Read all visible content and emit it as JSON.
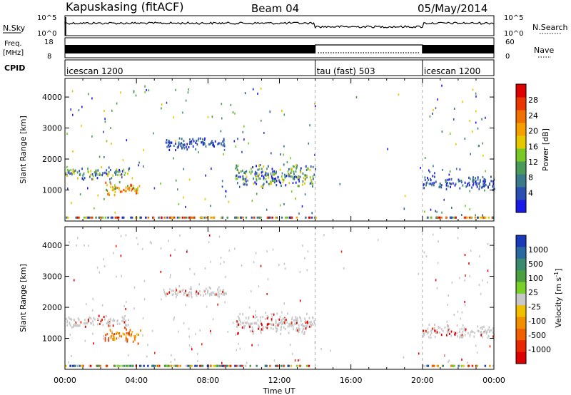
{
  "header": {
    "station": "Kapuskasing (fitACF)",
    "beam": "Beam 04",
    "date": "05/May/2014"
  },
  "strip_labels": {
    "nsky": "N.Sky",
    "nsky_top": "10^5",
    "nsky_bottom": "10^0",
    "freq_line1": "Freq.",
    "freq_line2": "[MHz]",
    "freq_top": "18",
    "freq_bottom": "8",
    "cpid": "CPID",
    "nsearch": "N.Search",
    "nsearch_top": "10^5",
    "nsearch_bottom": "10^0",
    "nave": "Nave",
    "nave_top": "60",
    "nave_bottom": "0"
  },
  "cpid_segments": [
    {
      "label": "icescan 1200",
      "start": 0,
      "end": 14
    },
    {
      "label": "tau (fast) 503",
      "start": 14,
      "end": 20
    },
    {
      "label": "icescan 1200",
      "start": 20,
      "end": 24
    }
  ],
  "chart_data": [
    {
      "type": "heatmap",
      "panel": "power",
      "xlabel": "",
      "ylabel": "Slant Range [km]",
      "x_range_hours": [
        0,
        24
      ],
      "ylim": [
        0,
        4600
      ],
      "y_ticks": [
        1000,
        2000,
        3000,
        4000
      ],
      "colorbar": {
        "label": "Power [dB]",
        "ticks": [
          "4",
          "8",
          "12",
          "16",
          "20",
          "24",
          "28"
        ],
        "colors": [
          "#1a1ae6",
          "#2a4fb0",
          "#3a7a8a",
          "#4a9a5a",
          "#78c828",
          "#e6c800",
          "#f5a000",
          "#f07000",
          "#e83800",
          "#dc0000"
        ]
      },
      "features": [
        {
          "t0": 0.0,
          "t1": 3.6,
          "r0": 1350,
          "r1": 1800,
          "value": "blue-green"
        },
        {
          "t0": 2.2,
          "t1": 4.2,
          "r0": 850,
          "r1": 1350,
          "value": "yellow-orange-red"
        },
        {
          "t0": 5.5,
          "t1": 9.0,
          "r0": 2300,
          "r1": 2750,
          "value": "blue"
        },
        {
          "t0": 9.5,
          "t1": 14.0,
          "r0": 1100,
          "r1": 1900,
          "value": "blue-green"
        },
        {
          "t0": 20.0,
          "t1": 24.0,
          "r0": 1000,
          "r1": 1500,
          "value": "blue"
        }
      ]
    },
    {
      "type": "heatmap",
      "panel": "velocity",
      "xlabel": "Time UT",
      "ylabel": "Slant Range [km]",
      "x_range_hours": [
        0,
        24
      ],
      "x_ticks": [
        "00:00",
        "04:00",
        "08:00",
        "12:00",
        "16:00",
        "20:00",
        "00:00"
      ],
      "ylim": [
        0,
        4600
      ],
      "y_ticks": [
        1000,
        2000,
        3000,
        4000
      ],
      "colorbar": {
        "label": "Velocity [m s^-1]",
        "ticks": [
          "1000",
          "500",
          "100",
          "25",
          "-25",
          "-100",
          "-500",
          "-1000"
        ],
        "colors": [
          "#1a3ab8",
          "#2a68a0",
          "#3a8a70",
          "#4aa040",
          "#78d028",
          "#c8c8c8",
          "#f0c000",
          "#f09000",
          "#f06000",
          "#e82800",
          "#dc0000"
        ]
      },
      "features": [
        {
          "t0": 0.0,
          "t1": 3.6,
          "r0": 1350,
          "r1": 1800,
          "value": "grey"
        },
        {
          "t0": 2.2,
          "t1": 4.2,
          "r0": 850,
          "r1": 1350,
          "value": "orange"
        },
        {
          "t0": 5.5,
          "t1": 9.0,
          "r0": 2300,
          "r1": 2750,
          "value": "grey"
        },
        {
          "t0": 9.5,
          "t1": 14.0,
          "r0": 1100,
          "r1": 1900,
          "value": "grey"
        },
        {
          "t0": 20.0,
          "t1": 24.0,
          "r0": 1000,
          "r1": 1500,
          "value": "grey"
        }
      ]
    }
  ]
}
